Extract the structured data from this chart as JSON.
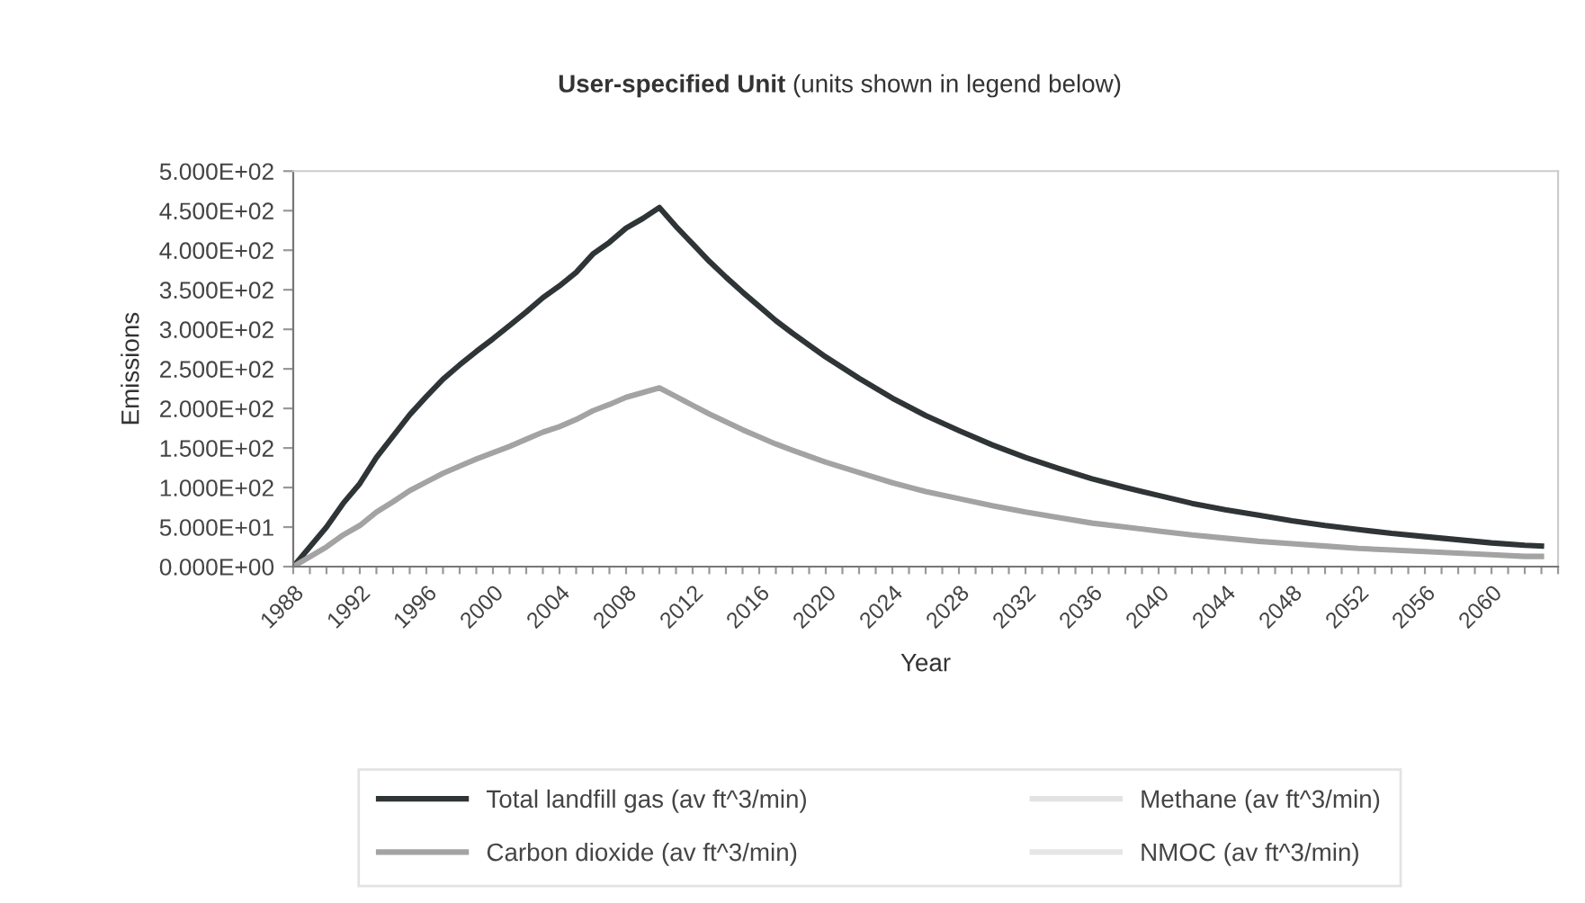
{
  "chart_data": {
    "type": "line",
    "title": "User-specified Unit",
    "subtitle": "(units shown in legend below)",
    "xlabel": "Year",
    "ylabel": "Emissions",
    "x": [
      1988,
      1990,
      1991,
      1992,
      1993,
      1994,
      1995,
      1996,
      1997,
      1998,
      1999,
      2000,
      2001,
      2002,
      2003,
      2004,
      2005,
      2006,
      2007,
      2008,
      2009,
      2010,
      2011,
      2012,
      2013,
      2014,
      2015,
      2016,
      2017,
      2018,
      2020,
      2022,
      2024,
      2026,
      2028,
      2030,
      2032,
      2034,
      2036,
      2038,
      2040,
      2042,
      2044,
      2046,
      2048,
      2050,
      2052,
      2054,
      2056,
      2058,
      2060,
      2062,
      2063
    ],
    "series": [
      {
        "name": "Total landfill gas (av ft^3/min)",
        "color": "#2f3436",
        "values": [
          0,
          50,
          80,
          105,
          138,
          165,
          192,
          215,
          237,
          255,
          272,
          288,
          305,
          322,
          340,
          355,
          372,
          395,
          410,
          428,
          440,
          454,
          430,
          408,
          386,
          366,
          347,
          329,
          311,
          295,
          265,
          238,
          213,
          191,
          172,
          154,
          138,
          124,
          111,
          100,
          90,
          80,
          72,
          65,
          58,
          52,
          47,
          42,
          38,
          34,
          30,
          27,
          26
        ]
      },
      {
        "name": "Methane (av ft^3/min)",
        "color": "#e2e2e2",
        "values": [
          null,
          null,
          null,
          null,
          null,
          null,
          null,
          null,
          null,
          null,
          null,
          null,
          null,
          null,
          null,
          null,
          null,
          null,
          null,
          null,
          null,
          null,
          null,
          null,
          null,
          null,
          null,
          null,
          null,
          null,
          null,
          null,
          null,
          null,
          null,
          null,
          null,
          null,
          null,
          null,
          null,
          null,
          null,
          null,
          null,
          null,
          null,
          null,
          null,
          null,
          null,
          null,
          null
        ]
      },
      {
        "name": "Carbon dioxide (av ft^3/min)",
        "color": "#a3a3a3",
        "values": [
          0,
          25,
          40,
          52,
          69,
          82,
          96,
          107,
          118,
          127,
          136,
          144,
          152,
          161,
          170,
          177,
          186,
          197,
          205,
          214,
          220,
          226,
          215,
          204,
          193,
          183,
          173,
          164,
          155,
          147,
          132,
          119,
          106,
          95,
          86,
          77,
          69,
          62,
          55,
          50,
          45,
          40,
          36,
          32,
          29,
          26,
          23,
          21,
          19,
          17,
          15,
          13,
          13
        ]
      },
      {
        "name": "NMOC (av ft^3/min)",
        "color": "#e6e6e6",
        "values": [
          null,
          null,
          null,
          null,
          null,
          null,
          null,
          null,
          null,
          null,
          null,
          null,
          null,
          null,
          null,
          null,
          null,
          null,
          null,
          null,
          null,
          null,
          null,
          null,
          null,
          null,
          null,
          null,
          null,
          null,
          null,
          null,
          null,
          null,
          null,
          null,
          null,
          null,
          null,
          null,
          null,
          null,
          null,
          null,
          null,
          null,
          null,
          null,
          null,
          null,
          null,
          null,
          null
        ]
      }
    ],
    "xlim": [
      1988,
      2064
    ],
    "xticks": [
      1988,
      {
        "value": 1989,
        "label": null
      },
      {
        "value": 1990,
        "label": null
      },
      {
        "value": 1991,
        "label": null
      },
      1992,
      {
        "value": 1993,
        "label": null
      },
      {
        "value": 1994,
        "label": null
      },
      {
        "value": 1995,
        "label": null
      },
      1996,
      {
        "value": 1997,
        "label": null
      },
      {
        "value": 1998,
        "label": null
      },
      {
        "value": 1999,
        "label": null
      },
      2000,
      {
        "value": 2001,
        "label": null
      },
      {
        "value": 2002,
        "label": null
      },
      {
        "value": 2003,
        "label": null
      },
      2004,
      {
        "value": 2005,
        "label": null
      },
      {
        "value": 2006,
        "label": null
      },
      {
        "value": 2007,
        "label": null
      },
      2008,
      {
        "value": 2009,
        "label": null
      },
      {
        "value": 2010,
        "label": null
      },
      {
        "value": 2011,
        "label": null
      },
      2012,
      {
        "value": 2013,
        "label": null
      },
      {
        "value": 2014,
        "label": null
      },
      {
        "value": 2015,
        "label": null
      },
      2016,
      {
        "value": 2017,
        "label": null
      },
      {
        "value": 2018,
        "label": null
      },
      {
        "value": 2019,
        "label": null
      },
      2020,
      {
        "value": 2021,
        "label": null
      },
      {
        "value": 2022,
        "label": null
      },
      {
        "value": 2023,
        "label": null
      },
      2024,
      {
        "value": 2025,
        "label": null
      },
      {
        "value": 2026,
        "label": null
      },
      {
        "value": 2027,
        "label": null
      },
      2028,
      {
        "value": 2029,
        "label": null
      },
      {
        "value": 2030,
        "label": null
      },
      {
        "value": 2031,
        "label": null
      },
      2032,
      {
        "value": 2033,
        "label": null
      },
      {
        "value": 2034,
        "label": null
      },
      {
        "value": 2035,
        "label": null
      },
      2036,
      {
        "value": 2037,
        "label": null
      },
      {
        "value": 2038,
        "label": null
      },
      {
        "value": 2039,
        "label": null
      },
      2040,
      {
        "value": 2041,
        "label": null
      },
      {
        "value": 2042,
        "label": null
      },
      {
        "value": 2043,
        "label": null
      },
      2044,
      {
        "value": 2045,
        "label": null
      },
      {
        "value": 2046,
        "label": null
      },
      {
        "value": 2047,
        "label": null
      },
      2048,
      {
        "value": 2049,
        "label": null
      },
      {
        "value": 2050,
        "label": null
      },
      {
        "value": 2051,
        "label": null
      },
      2052,
      {
        "value": 2053,
        "label": null
      },
      {
        "value": 2054,
        "label": null
      },
      {
        "value": 2055,
        "label": null
      },
      2056,
      {
        "value": 2057,
        "label": null
      },
      {
        "value": 2058,
        "label": null
      },
      {
        "value": 2059,
        "label": null
      },
      2060,
      {
        "value": 2061,
        "label": null
      },
      {
        "value": 2062,
        "label": null
      },
      {
        "value": 2063,
        "label": null
      },
      {
        "value": 2064,
        "label": null
      }
    ],
    "ylim": [
      0,
      500
    ],
    "yticks": [
      {
        "value": 0,
        "label": "0.000E+00"
      },
      {
        "value": 50,
        "label": "5.000E+01"
      },
      {
        "value": 100,
        "label": "1.000E+02"
      },
      {
        "value": 150,
        "label": "1.500E+02"
      },
      {
        "value": 200,
        "label": "2.000E+02"
      },
      {
        "value": 250,
        "label": "2.500E+02"
      },
      {
        "value": 300,
        "label": "3.000E+02"
      },
      {
        "value": 350,
        "label": "3.500E+02"
      },
      {
        "value": 400,
        "label": "4.000E+02"
      },
      {
        "value": 450,
        "label": "4.500E+02"
      },
      {
        "value": 500,
        "label": "5.000E+02"
      }
    ],
    "grid": false,
    "legend": "bottom",
    "marker": "none",
    "line_style": "solid"
  }
}
